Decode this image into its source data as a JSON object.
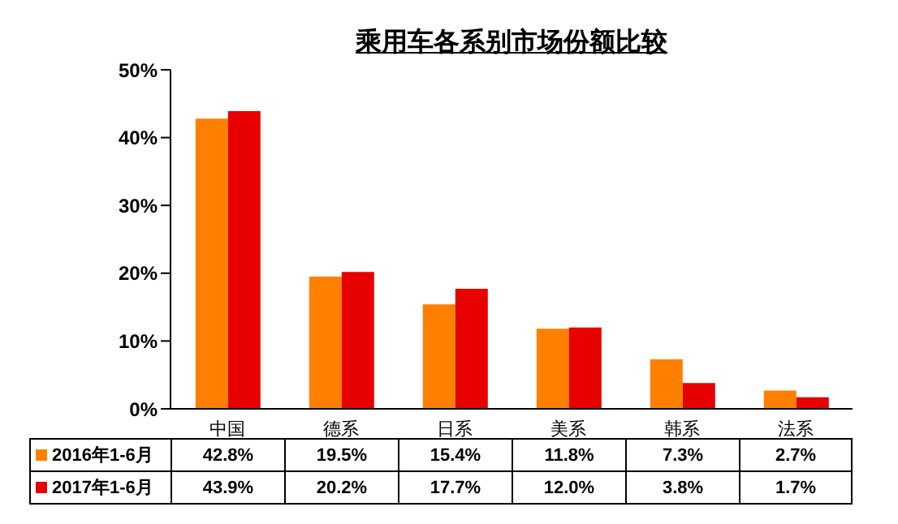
{
  "chart_data": {
    "type": "bar",
    "title": "乘用车各系别市场份额比较",
    "categories": [
      "中国",
      "德系",
      "日系",
      "美系",
      "韩系",
      "法系"
    ],
    "series": [
      {
        "name": "2016年1-6月",
        "color": "#ff8000",
        "values": [
          42.8,
          19.5,
          15.4,
          11.8,
          7.3,
          2.7
        ],
        "value_labels": [
          "42.8%",
          "19.5%",
          "15.4%",
          "11.8%",
          "7.3%",
          "2.7%"
        ]
      },
      {
        "name": "2017年1-6月",
        "color": "#e60000",
        "values": [
          43.9,
          20.2,
          17.7,
          12.0,
          3.8,
          1.7
        ],
        "value_labels": [
          "43.9%",
          "20.2%",
          "17.7%",
          "12.0%",
          "3.8%",
          "1.7%"
        ]
      }
    ],
    "ylim": [
      0,
      50
    ],
    "yticks": [
      {
        "value": 0,
        "label": "0%"
      },
      {
        "value": 10,
        "label": "10%"
      },
      {
        "value": 20,
        "label": "20%"
      },
      {
        "value": 30,
        "label": "30%"
      },
      {
        "value": 40,
        "label": "40%"
      },
      {
        "value": 50,
        "label": "50%"
      }
    ],
    "grid": false,
    "legend": "bottom"
  }
}
